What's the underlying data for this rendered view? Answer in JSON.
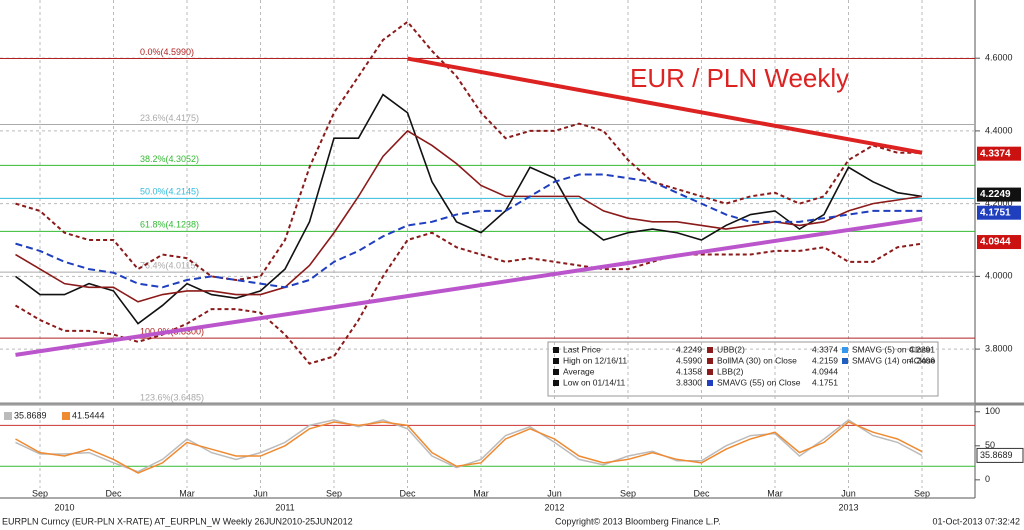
{
  "chart_data": {
    "type": "line",
    "title": "EUR / PLN Weekly",
    "x": [
      "Aug 2010",
      "Sep 2010",
      "Oct 2010",
      "Nov 2010",
      "Dec 2010",
      "Jan 2011",
      "Feb 2011",
      "Mar 2011",
      "Apr 2011",
      "May 2011",
      "Jun 2011",
      "Jul 2011",
      "Aug 2011",
      "Sep 2011",
      "Oct 2011",
      "Nov 2011",
      "Dec 2011",
      "Jan 2012",
      "Feb 2012",
      "Mar 2012",
      "Apr 2012",
      "May 2012",
      "Jun 2012",
      "Jul 2012",
      "Aug 2012",
      "Sep 2012",
      "Oct 2012",
      "Nov 2012",
      "Dec 2012",
      "Jan 2013",
      "Feb 2013",
      "Mar 2013",
      "Apr 2013",
      "May 2013",
      "Jun 2013",
      "Jul 2013",
      "Aug 2013",
      "Sep 2013"
    ],
    "series": [
      {
        "name": "Last Price",
        "color": "#111111",
        "dash": false,
        "values": [
          4.0,
          3.95,
          3.95,
          3.98,
          3.96,
          3.87,
          3.92,
          3.98,
          3.95,
          3.94,
          3.96,
          4.02,
          4.15,
          4.38,
          4.38,
          4.5,
          4.45,
          4.26,
          4.15,
          4.12,
          4.18,
          4.3,
          4.27,
          4.15,
          4.1,
          4.12,
          4.13,
          4.12,
          4.1,
          4.14,
          4.17,
          4.18,
          4.13,
          4.17,
          4.3,
          4.26,
          4.23,
          4.22
        ]
      },
      {
        "name": "UBB(2)",
        "color": "#8b1a1a",
        "dash": true,
        "values": [
          4.2,
          4.18,
          4.12,
          4.1,
          4.1,
          4.02,
          4.06,
          4.05,
          4.0,
          3.99,
          4.0,
          4.1,
          4.3,
          4.45,
          4.55,
          4.65,
          4.7,
          4.62,
          4.55,
          4.45,
          4.38,
          4.4,
          4.4,
          4.42,
          4.4,
          4.32,
          4.26,
          4.24,
          4.22,
          4.2,
          4.22,
          4.23,
          4.2,
          4.22,
          4.32,
          4.36,
          4.34,
          4.34
        ]
      },
      {
        "name": "BollMA (30) on Close",
        "color": "#8b1a1a",
        "dash": false,
        "values": [
          4.06,
          4.02,
          3.98,
          3.97,
          3.97,
          3.93,
          3.95,
          3.96,
          3.96,
          3.95,
          3.95,
          3.97,
          4.03,
          4.12,
          4.22,
          4.33,
          4.4,
          4.36,
          4.31,
          4.25,
          4.22,
          4.22,
          4.22,
          4.22,
          4.18,
          4.16,
          4.15,
          4.15,
          4.14,
          4.13,
          4.14,
          4.15,
          4.14,
          4.15,
          4.18,
          4.2,
          4.21,
          4.22
        ]
      },
      {
        "name": "LBB(2)",
        "color": "#8b1a1a",
        "dash": true,
        "values": [
          3.92,
          3.88,
          3.85,
          3.85,
          3.84,
          3.82,
          3.84,
          3.87,
          3.91,
          3.91,
          3.9,
          3.84,
          3.76,
          3.78,
          3.88,
          4.0,
          4.1,
          4.12,
          4.08,
          4.06,
          4.04,
          4.05,
          4.04,
          4.03,
          4.02,
          4.02,
          4.04,
          4.06,
          4.06,
          4.06,
          4.06,
          4.07,
          4.07,
          4.08,
          4.04,
          4.04,
          4.08,
          4.09
        ]
      },
      {
        "name": "SMAVG (55) on Close",
        "color": "#1f3fbf",
        "dash": true,
        "values": [
          4.09,
          4.07,
          4.04,
          4.02,
          4.01,
          3.98,
          3.97,
          3.99,
          4.0,
          3.99,
          3.98,
          3.97,
          3.99,
          4.04,
          4.07,
          4.11,
          4.14,
          4.15,
          4.17,
          4.18,
          4.18,
          4.22,
          4.26,
          4.28,
          4.28,
          4.27,
          4.26,
          4.23,
          4.2,
          4.17,
          4.15,
          4.15,
          4.15,
          4.16,
          4.17,
          4.18,
          4.18,
          4.18
        ]
      }
    ],
    "ylim": [
      3.66,
      4.76
    ],
    "yticks": [
      {
        "value": 3.8,
        "label": "3.8000"
      },
      {
        "value": 4.0,
        "label": "4.0000"
      },
      {
        "value": 4.2,
        "label": "4.2000"
      },
      {
        "value": 4.4,
        "label": "4.4000"
      },
      {
        "value": 4.6,
        "label": "4.6000"
      }
    ],
    "xticks": [
      {
        "value": "Sep 2010",
        "label": "Sep"
      },
      {
        "value": "Dec 2010",
        "label": "Dec"
      },
      {
        "value": "Mar 2011",
        "label": "Mar"
      },
      {
        "value": "Jun 2011",
        "label": "Jun"
      },
      {
        "value": "Sep 2011",
        "label": "Sep"
      },
      {
        "value": "Dec 2011",
        "label": "Dec"
      },
      {
        "value": "Mar 2012",
        "label": "Mar"
      },
      {
        "value": "Jun 2012",
        "label": "Jun"
      },
      {
        "value": "Sep 2012",
        "label": "Sep"
      },
      {
        "value": "Dec 2012",
        "label": "Dec"
      },
      {
        "value": "Mar 2013",
        "label": "Mar"
      },
      {
        "value": "Jun 2013",
        "label": "Jun"
      },
      {
        "value": "Sep 2013",
        "label": "Sep"
      }
    ],
    "years": [
      {
        "value": "Oct 2010",
        "label": "2010"
      },
      {
        "value": "Jul 2011",
        "label": "2011"
      },
      {
        "value": "Jun 2012",
        "label": "2012"
      },
      {
        "value": "Jun 2013",
        "label": "2013"
      }
    ],
    "grid": true,
    "fib_levels": [
      {
        "label": "0.0%(4.5990)",
        "value": 4.599,
        "color": "#b22222"
      },
      {
        "label": "23.6%(4.4175)",
        "value": 4.4175,
        "color": "#aaaaaa"
      },
      {
        "label": "38.2%(4.3052)",
        "value": 4.3052,
        "color": "#33bb33"
      },
      {
        "label": "50.0%(4.2145)",
        "value": 4.2145,
        "color": "#33bbdd"
      },
      {
        "label": "61.8%(4.1238)",
        "value": 4.1238,
        "color": "#33bb33"
      },
      {
        "label": "76.4%(4.0115)",
        "value": 4.0115,
        "color": "#aaaaaa"
      },
      {
        "label": "100.0%(3.8300)",
        "value": 3.83,
        "color": "#b22222"
      },
      {
        "label": "123.6%(3.6485)",
        "value": 3.6485,
        "color": "#aaaaaa"
      }
    ],
    "trendlines": [
      {
        "color": "#dd2222",
        "x": [
          "Dec 2011",
          "Sep 2013"
        ],
        "values": [
          4.599,
          4.34
        ]
      },
      {
        "color": "#bb55cc",
        "x": [
          "Aug 2010",
          "Sep 2013"
        ],
        "values": [
          3.784,
          4.158
        ]
      }
    ],
    "tags": [
      {
        "value": 4.3374,
        "label": "4.3374",
        "color": "#cc1111"
      },
      {
        "value": 4.2249,
        "label": "4.2249",
        "color": "#111111"
      },
      {
        "value": 4.1751,
        "label": "4.1751",
        "color": "#1f3fbf"
      },
      {
        "value": 4.0944,
        "label": "4.0944",
        "color": "#cc1111"
      }
    ],
    "legend": [
      {
        "name": "Last Price",
        "value": "4.2249",
        "color": "#111111"
      },
      {
        "name": "High on 12/16/11",
        "value": "4.5990",
        "color": "#111111"
      },
      {
        "name": "Average",
        "value": "4.1358",
        "color": "#111111"
      },
      {
        "name": "Low on 01/14/11",
        "value": "3.8300",
        "color": "#111111"
      },
      {
        "name": "UBB(2)",
        "value": "4.3374",
        "color": "#8b1a1a"
      },
      {
        "name": "BollMA (30) on Close",
        "value": "4.2159",
        "color": "#8b1a1a"
      },
      {
        "name": "LBB(2)",
        "value": "4.0944",
        "color": "#8b1a1a"
      },
      {
        "name": "SMAVG (55) on Close",
        "value": "4.1751",
        "color": "#1f3fbf"
      },
      {
        "name": "SMAVG (5) on Close",
        "value": "4.2291",
        "color": "#3399ee"
      },
      {
        "name": "SMAVG (14) on Close",
        "value": "4.2406",
        "color": "#1f5fbf"
      }
    ],
    "oscillator": {
      "ylim": [
        -12,
        107
      ],
      "yticks": [
        0,
        50,
        100
      ],
      "levels": [
        {
          "value": 80,
          "color": "#cc3333"
        },
        {
          "value": 20,
          "color": "#33bb33"
        }
      ],
      "series": [
        {
          "last": "35.8689",
          "color": "#bbbbbb",
          "values": [
            55,
            38,
            38,
            40,
            25,
            12,
            30,
            60,
            40,
            30,
            40,
            55,
            80,
            88,
            78,
            88,
            75,
            35,
            18,
            30,
            65,
            78,
            55,
            30,
            22,
            35,
            42,
            28,
            28,
            50,
            65,
            68,
            35,
            60,
            88,
            65,
            55,
            35.8689
          ]
        },
        {
          "last": "41.5444",
          "color": "#f08a30",
          "values": [
            60,
            40,
            35,
            45,
            30,
            10,
            25,
            55,
            45,
            35,
            35,
            50,
            75,
            85,
            80,
            85,
            80,
            40,
            20,
            25,
            60,
            75,
            60,
            35,
            25,
            30,
            40,
            30,
            25,
            45,
            60,
            70,
            40,
            55,
            85,
            70,
            60,
            41.5444
          ]
        }
      ],
      "tag": {
        "value": 35.8689,
        "label": "35.8689"
      }
    },
    "footer": {
      "left": "EURPLN Curncy (EUR-PLN X-RATE) AT_EURPLN_W  Weekly 26JUN2010-25JUN2012",
      "center": "Copyright© 2013 Bloomberg Finance L.P.",
      "right": "01-Oct-2013 07:32:42"
    }
  }
}
